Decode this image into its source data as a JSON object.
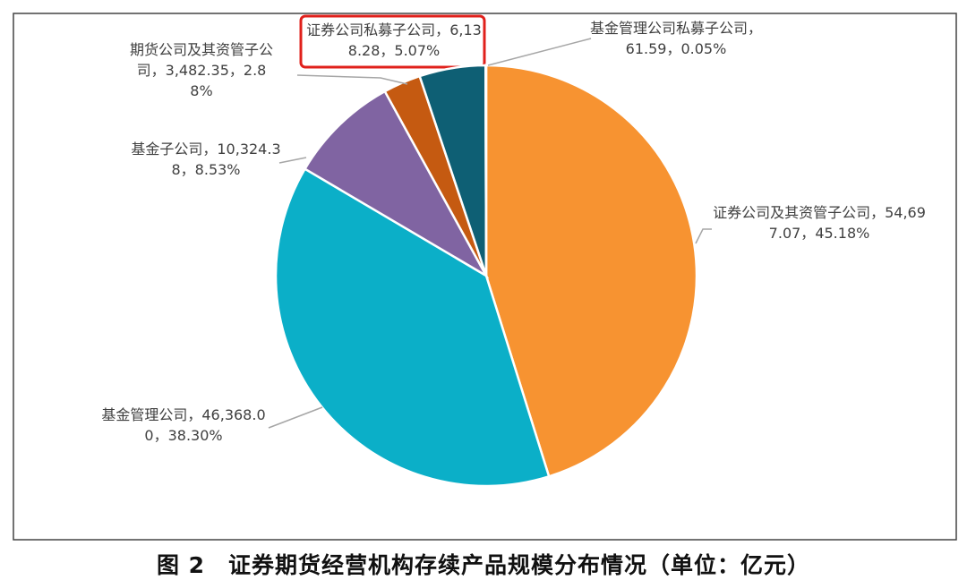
{
  "chart_data": {
    "type": "pie",
    "title": "图 2　证券期货经营机构存续产品规模分布情况（单位：亿元）",
    "categories": [
      "证券公司及其资管子公司，",
      "基金管理公司，",
      "基金子公司，",
      "期货公司及其资管子公司，",
      "证券公司私募子公司，",
      "基金管理公司私募子公司，"
    ],
    "values": [
      54697.07,
      46368.0,
      10324.38,
      3482.35,
      6138.28,
      61.59
    ],
    "value_labels": [
      "54,697.07，",
      "46,368.00，",
      "10,324.38，",
      "3,482.35，",
      "6,138.28，",
      "61.59，"
    ],
    "percents": [
      45.18,
      38.3,
      8.53,
      2.88,
      5.07,
      0.05
    ],
    "percent_labels": [
      "45.18%",
      "38.30%",
      "8.53%",
      "2.88%",
      "5.07%",
      "0.05%"
    ],
    "colors": [
      "#F79331",
      "#0BAFC8",
      "#8064A2",
      "#C55A11",
      "#0E5F74",
      "#2E75B6"
    ]
  }
}
